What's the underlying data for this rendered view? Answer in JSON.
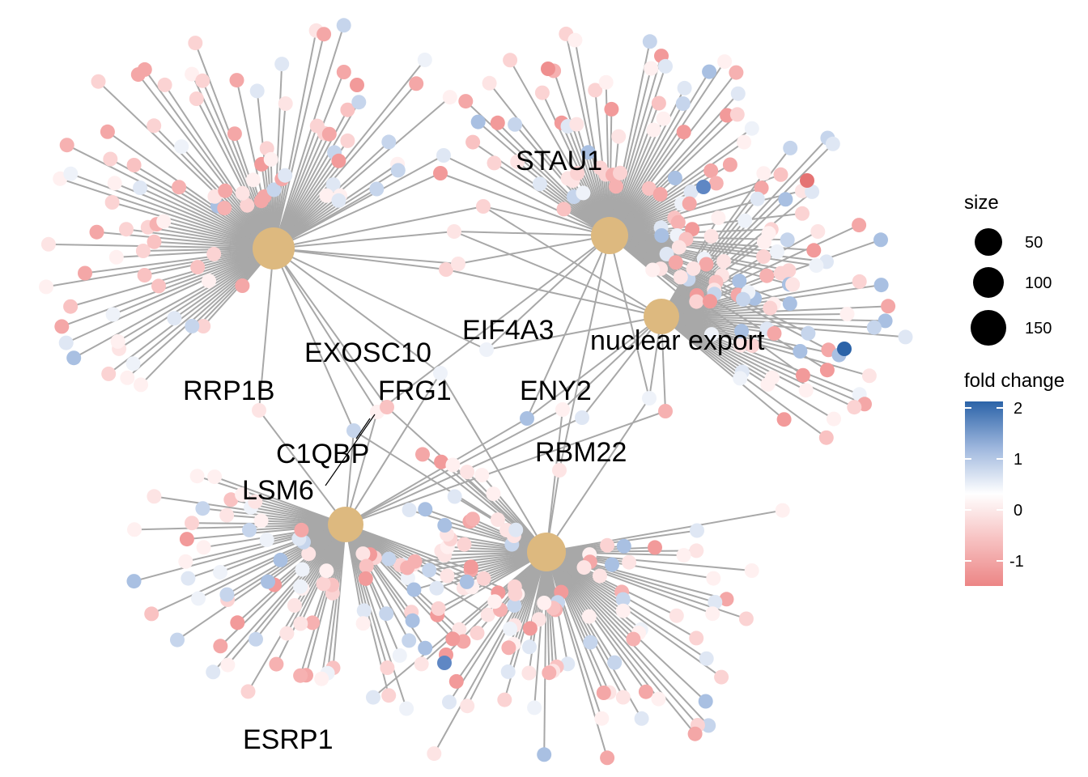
{
  "network": {
    "hubs": [
      {
        "name": "RRP1B",
        "label": "RRP1B"
      },
      {
        "name": "STAU1",
        "label": "STAU1"
      },
      {
        "name": "nuclear-export",
        "label": "nuclear export"
      },
      {
        "name": "ESRP1",
        "label": "ESRP1"
      },
      {
        "name": "RBM22",
        "label": "RBM22"
      }
    ],
    "shared_gene_labels": [
      {
        "name": "EXOSC10",
        "label": "EXOSC10"
      },
      {
        "name": "EIF4A3",
        "label": "EIF4A3"
      },
      {
        "name": "FRG1",
        "label": "FRG1"
      },
      {
        "name": "ENY2",
        "label": "ENY2"
      },
      {
        "name": "C1QBP",
        "label": "C1QBP"
      },
      {
        "name": "LSM6",
        "label": "LSM6"
      }
    ]
  },
  "legend": {
    "size_title": "size",
    "size_items": [
      "50",
      "100",
      "150"
    ],
    "color_title": "fold change",
    "color_ticks": [
      "2",
      "1",
      "0",
      "-1"
    ],
    "colors": {
      "high": "#2b63a8",
      "mid": "#ffffff",
      "low": "#ec8585"
    }
  },
  "colors": {
    "hub": "#ddb97f",
    "edge": "#a8a8a8"
  }
}
